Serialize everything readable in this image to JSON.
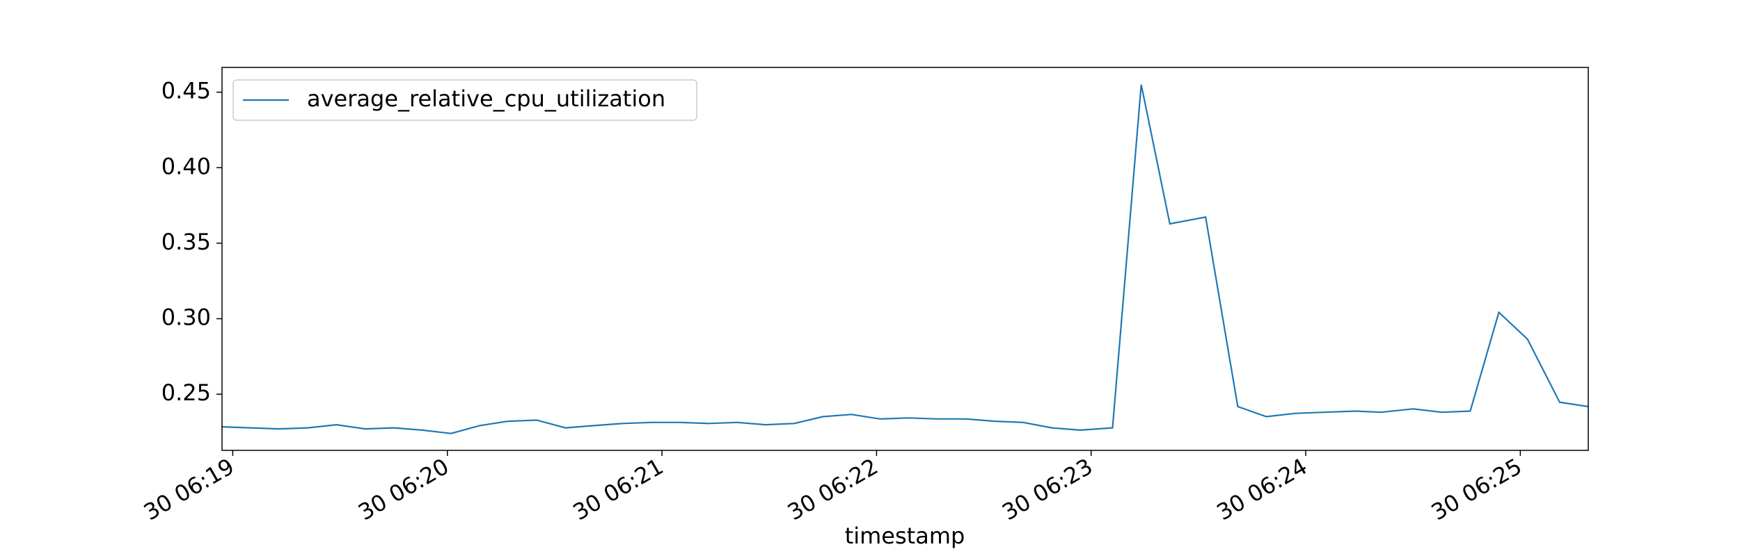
{
  "chart_data": {
    "type": "line",
    "xlabel": "timestamp",
    "x": [
      "30 06:18:57",
      "30 06:19:05",
      "30 06:19:13",
      "30 06:19:21",
      "30 06:19:29",
      "30 06:19:37",
      "30 06:19:45",
      "30 06:19:53",
      "30 06:20:01",
      "30 06:20:09",
      "30 06:20:17",
      "30 06:20:25",
      "30 06:20:33",
      "30 06:20:41",
      "30 06:20:49",
      "30 06:20:57",
      "30 06:21:05",
      "30 06:21:13",
      "30 06:21:21",
      "30 06:21:29",
      "30 06:21:37",
      "30 06:21:45",
      "30 06:21:53",
      "30 06:22:01",
      "30 06:22:09",
      "30 06:22:17",
      "30 06:22:25",
      "30 06:22:33",
      "30 06:22:41",
      "30 06:22:49",
      "30 06:22:57",
      "30 06:23:06",
      "30 06:23:14",
      "30 06:23:22",
      "30 06:23:32",
      "30 06:23:41",
      "30 06:23:49",
      "30 06:23:57",
      "30 06:24:05",
      "30 06:24:14",
      "30 06:24:21",
      "30 06:24:30",
      "30 06:24:38",
      "30 06:24:46",
      "30 06:24:54",
      "30 06:25:02",
      "30 06:25:11",
      "30 06:25:19"
    ],
    "series": [
      {
        "name": "average_relative_cpu_utilization",
        "color": "#1f77b4",
        "values": [
          0.2284,
          0.2277,
          0.227,
          0.2277,
          0.2298,
          0.227,
          0.2277,
          0.2262,
          0.224,
          0.2292,
          0.2321,
          0.2328,
          0.2277,
          0.2292,
          0.2306,
          0.2313,
          0.2313,
          0.2306,
          0.2313,
          0.2298,
          0.2306,
          0.2351,
          0.2366,
          0.2336,
          0.2343,
          0.2336,
          0.2336,
          0.2321,
          0.2313,
          0.2277,
          0.2262,
          0.2277,
          0.455,
          0.3628,
          0.3673,
          0.2418,
          0.2351,
          0.2373,
          0.238,
          0.2388,
          0.238,
          0.2403,
          0.238,
          0.2388,
          0.3042,
          0.2865,
          0.2447,
          0.2418
        ]
      }
    ],
    "xlim": [
      "30 06:18:57",
      "30 06:25:19"
    ],
    "xticks": [
      "30 06:19",
      "30 06:20",
      "30 06:21",
      "30 06:22",
      "30 06:23",
      "30 06:24",
      "30 06:25"
    ],
    "ylim": [
      0.2128,
      0.4664
    ],
    "yticks": [
      0.25,
      {
        "value": 0.3,
        "label": "0.30"
      },
      0.35,
      {
        "value": 0.4,
        "label": "0.40"
      },
      0.45
    ],
    "legend": "upper left"
  }
}
